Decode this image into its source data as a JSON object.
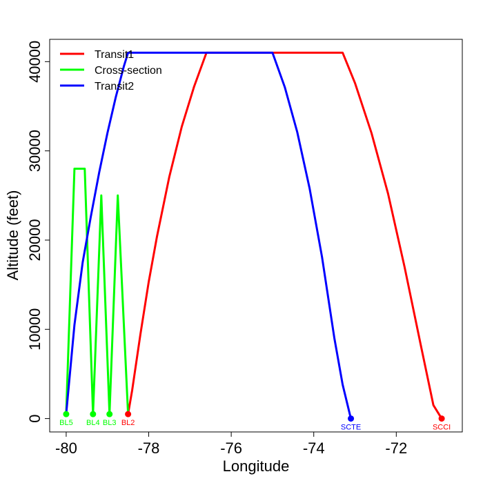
{
  "chart_data": {
    "type": "line",
    "title": "",
    "xlabel": "Longitude",
    "ylabel": "Altitude (feet)",
    "xlim": [
      -80.4,
      -70.4
    ],
    "ylim": [
      -1500,
      42500
    ],
    "x_ticks": [
      -80,
      -78,
      -76,
      -74,
      -72
    ],
    "y_ticks": [
      0,
      10000,
      20000,
      30000,
      40000
    ],
    "x_tick_labels": [
      "-80",
      "-78",
      "-76",
      "-74",
      "-72"
    ],
    "y_tick_labels": [
      "0",
      "10000",
      "20000",
      "30000",
      "40000"
    ],
    "grid": false,
    "legend_position": "top-left",
    "series": [
      {
        "name": "Transit1",
        "color": "#ff0000",
        "points": [
          [
            -78.5,
            500
          ],
          [
            -78.4,
            3200
          ],
          [
            -78.2,
            9500
          ],
          [
            -78.0,
            15300
          ],
          [
            -77.8,
            20400
          ],
          [
            -77.5,
            27100
          ],
          [
            -77.2,
            32700
          ],
          [
            -76.9,
            37200
          ],
          [
            -76.6,
            41000
          ],
          [
            -73.3,
            41000
          ],
          [
            -73.0,
            37600
          ],
          [
            -72.6,
            32000
          ],
          [
            -72.2,
            25200
          ],
          [
            -71.8,
            17000
          ],
          [
            -71.4,
            8100
          ],
          [
            -71.1,
            1500
          ],
          [
            -70.9,
            0
          ]
        ]
      },
      {
        "name": "Cross-section",
        "color": "#00ff00",
        "points": [
          [
            -80.0,
            500
          ],
          [
            -79.8,
            28000
          ],
          [
            -79.55,
            28000
          ],
          [
            -79.35,
            500
          ],
          [
            -79.15,
            25000
          ],
          [
            -78.95,
            500
          ],
          [
            -78.75,
            25000
          ],
          [
            -78.5,
            500
          ]
        ]
      },
      {
        "name": "Transit2",
        "color": "#0000ff",
        "points": [
          [
            -80.0,
            500
          ],
          [
            -79.8,
            10500
          ],
          [
            -79.6,
            17500
          ],
          [
            -79.4,
            22700
          ],
          [
            -79.2,
            27600
          ],
          [
            -79.0,
            32000
          ],
          [
            -78.8,
            36000
          ],
          [
            -78.6,
            39500
          ],
          [
            -78.5,
            41000
          ],
          [
            -75.0,
            41000
          ],
          [
            -74.7,
            37100
          ],
          [
            -74.4,
            32100
          ],
          [
            -74.1,
            25800
          ],
          [
            -73.8,
            18100
          ],
          [
            -73.5,
            9000
          ],
          [
            -73.3,
            3800
          ],
          [
            -73.1,
            0
          ]
        ]
      }
    ],
    "point_labels": [
      {
        "label": "BL5",
        "x": -80.0,
        "y": 500,
        "color": "#00ff00"
      },
      {
        "label": "BL4",
        "x": -79.35,
        "y": 500,
        "color": "#00ff00"
      },
      {
        "label": "BL3",
        "x": -78.95,
        "y": 500,
        "color": "#00ff00"
      },
      {
        "label": "BL2",
        "x": -78.5,
        "y": 500,
        "color": "#ff0000"
      },
      {
        "label": "SCTE",
        "x": -73.1,
        "y": 0,
        "color": "#0000ff"
      },
      {
        "label": "SCCI",
        "x": -70.9,
        "y": 0,
        "color": "#ff0000"
      }
    ]
  }
}
